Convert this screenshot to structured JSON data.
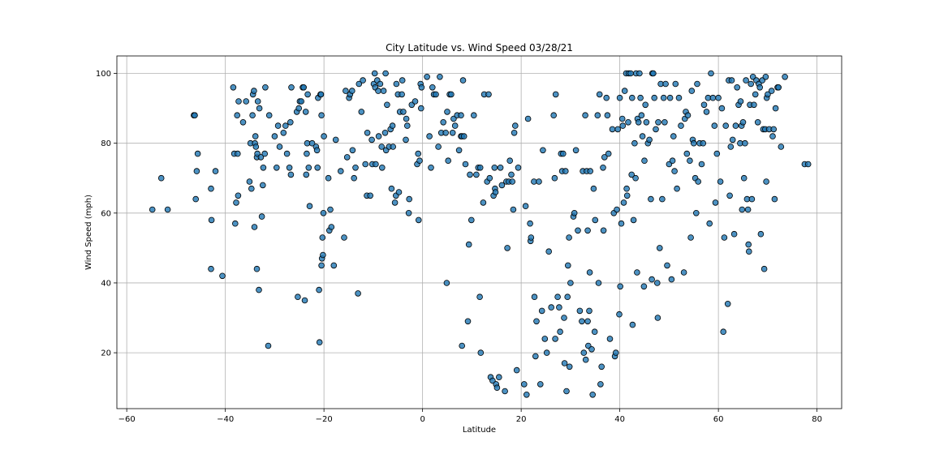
{
  "chart_data": {
    "type": "scatter",
    "title": "City Latitude vs. Wind Speed 03/28/21",
    "xlabel": "Latitude",
    "ylabel": "Wind Speed (mph)",
    "xlim": [
      -62,
      85
    ],
    "ylim": [
      4,
      105
    ],
    "xticks": [
      -60,
      -40,
      -20,
      0,
      20,
      40,
      60,
      80
    ],
    "yticks": [
      20,
      40,
      60,
      80,
      100
    ],
    "grid": true,
    "legend": "none",
    "colors": {
      "point_fill": "#1f77b4",
      "point_edge": "#000000"
    },
    "points": [
      [
        -54.8,
        61
      ],
      [
        -53,
        70
      ],
      [
        -51.7,
        61
      ],
      [
        -46.4,
        88
      ],
      [
        -46.2,
        88
      ],
      [
        -46,
        64
      ],
      [
        -45.8,
        72
      ],
      [
        -45.6,
        77
      ],
      [
        -42.8,
        58
      ],
      [
        -42.9,
        67
      ],
      [
        -42.9,
        44
      ],
      [
        -42,
        72
      ],
      [
        -40.6,
        42
      ],
      [
        -38.4,
        96
      ],
      [
        -38.2,
        77
      ],
      [
        -38,
        57
      ],
      [
        -37.8,
        63
      ],
      [
        -37.6,
        88
      ],
      [
        -37.4,
        65
      ],
      [
        -37.3,
        92
      ],
      [
        -37.5,
        77
      ],
      [
        -36.4,
        86
      ],
      [
        -35.8,
        92
      ],
      [
        -35.1,
        69
      ],
      [
        -34.9,
        80
      ],
      [
        -34.7,
        67
      ],
      [
        -34.5,
        88
      ],
      [
        -34.4,
        94
      ],
      [
        -34.2,
        95
      ],
      [
        -34.1,
        56
      ],
      [
        -34,
        80
      ],
      [
        -33.8,
        79
      ],
      [
        -33.6,
        44
      ],
      [
        -33.6,
        76
      ],
      [
        -33.9,
        82
      ],
      [
        -33.5,
        77
      ],
      [
        -33.4,
        92
      ],
      [
        -33.2,
        38
      ],
      [
        -33.1,
        90
      ],
      [
        -32.8,
        76
      ],
      [
        -32.6,
        59
      ],
      [
        -32.4,
        68
      ],
      [
        -32.3,
        73
      ],
      [
        -32,
        77
      ],
      [
        -31.9,
        96
      ],
      [
        -31.3,
        22
      ],
      [
        -31.1,
        88
      ],
      [
        -30,
        82
      ],
      [
        -29.6,
        73
      ],
      [
        -29.3,
        85
      ],
      [
        -29,
        79
      ],
      [
        -28.2,
        83
      ],
      [
        -27.8,
        85
      ],
      [
        -27.5,
        77
      ],
      [
        -27,
        73
      ],
      [
        -26.8,
        86
      ],
      [
        -26.7,
        71
      ],
      [
        -26.6,
        96
      ],
      [
        -25.5,
        89
      ],
      [
        -25.3,
        36
      ],
      [
        -25.1,
        90
      ],
      [
        -24.9,
        92
      ],
      [
        -24.6,
        92
      ],
      [
        -24.3,
        96
      ],
      [
        -24.1,
        96
      ],
      [
        -23.9,
        35
      ],
      [
        -23.7,
        89
      ],
      [
        -23.6,
        71
      ],
      [
        -23.5,
        77
      ],
      [
        -23.4,
        80
      ],
      [
        -23.3,
        94
      ],
      [
        -23.1,
        73
      ],
      [
        -22.9,
        62
      ],
      [
        -22.4,
        80
      ],
      [
        -21.6,
        79
      ],
      [
        -21.4,
        78
      ],
      [
        -21.3,
        73
      ],
      [
        -21.2,
        93
      ],
      [
        -21,
        38
      ],
      [
        -20.9,
        23
      ],
      [
        -20.7,
        94
      ],
      [
        -20.6,
        94
      ],
      [
        -20.5,
        88
      ],
      [
        -20.5,
        45
      ],
      [
        -20.4,
        47
      ],
      [
        -20.3,
        53
      ],
      [
        -20.2,
        48
      ],
      [
        -20.1,
        60
      ],
      [
        -20,
        82
      ],
      [
        -19.1,
        70
      ],
      [
        -18.9,
        55
      ],
      [
        -18.7,
        61
      ],
      [
        -18.5,
        56
      ],
      [
        -18,
        45
      ],
      [
        -17.6,
        81
      ],
      [
        -16.6,
        72
      ],
      [
        -15.9,
        53
      ],
      [
        -15.6,
        95
      ],
      [
        -15.3,
        76
      ],
      [
        -14.9,
        93
      ],
      [
        -14.7,
        94
      ],
      [
        -14.3,
        95
      ],
      [
        -14.2,
        78
      ],
      [
        -13.9,
        70
      ],
      [
        -13.6,
        73
      ],
      [
        -13.1,
        37
      ],
      [
        -12.9,
        97
      ],
      [
        -12.4,
        89
      ],
      [
        -12.1,
        98
      ],
      [
        -11.6,
        74
      ],
      [
        -11.3,
        65
      ],
      [
        -11.2,
        83
      ],
      [
        -10.6,
        65
      ],
      [
        -10.3,
        81
      ],
      [
        -10.2,
        74
      ],
      [
        -9.9,
        97
      ],
      [
        -9.7,
        100
      ],
      [
        -9.6,
        96
      ],
      [
        -9.5,
        74
      ],
      [
        -9.2,
        98
      ],
      [
        -9,
        95
      ],
      [
        -8.9,
        82
      ],
      [
        -8.6,
        97
      ],
      [
        -8.3,
        79
      ],
      [
        -8.2,
        73
      ],
      [
        -7.9,
        95
      ],
      [
        -7.6,
        83
      ],
      [
        -7.5,
        100
      ],
      [
        -7.4,
        78
      ],
      [
        -7.2,
        91
      ],
      [
        -6.8,
        79
      ],
      [
        -6.5,
        84
      ],
      [
        -6.3,
        67
      ],
      [
        -6.1,
        85
      ],
      [
        -6,
        79
      ],
      [
        -5.6,
        63
      ],
      [
        -5.4,
        65
      ],
      [
        -5.3,
        97
      ],
      [
        -5,
        94
      ],
      [
        -4.8,
        66
      ],
      [
        -4.6,
        89
      ],
      [
        -4.2,
        94
      ],
      [
        -4.1,
        98
      ],
      [
        -3.9,
        89
      ],
      [
        -3.4,
        81
      ],
      [
        -3.3,
        87
      ],
      [
        -3.1,
        85
      ],
      [
        -2.8,
        60
      ],
      [
        -2.7,
        64
      ],
      [
        -2.2,
        91
      ],
      [
        -1.5,
        92
      ],
      [
        -1.1,
        74
      ],
      [
        -0.9,
        77
      ],
      [
        -0.8,
        58
      ],
      [
        -0.6,
        75
      ],
      [
        -0.4,
        97
      ],
      [
        -0.3,
        90
      ],
      [
        -0.2,
        96
      ],
      [
        0.9,
        99
      ],
      [
        1.4,
        82
      ],
      [
        1.7,
        73
      ],
      [
        2,
        96
      ],
      [
        2.3,
        94
      ],
      [
        2.7,
        94
      ],
      [
        3.2,
        79
      ],
      [
        3.5,
        99
      ],
      [
        3.8,
        83
      ],
      [
        4.2,
        86
      ],
      [
        4.7,
        83
      ],
      [
        4.9,
        40
      ],
      [
        5,
        89
      ],
      [
        5.2,
        75
      ],
      [
        5.5,
        94
      ],
      [
        5.8,
        94
      ],
      [
        6.1,
        83
      ],
      [
        6.3,
        87
      ],
      [
        6.6,
        85
      ],
      [
        7,
        88
      ],
      [
        7.4,
        78
      ],
      [
        7.8,
        82
      ],
      [
        7.8,
        88
      ],
      [
        8,
        22
      ],
      [
        8,
        82
      ],
      [
        8.2,
        98
      ],
      [
        8.4,
        82
      ],
      [
        8.7,
        74
      ],
      [
        9.2,
        29
      ],
      [
        9.4,
        51
      ],
      [
        9.6,
        71
      ],
      [
        9.9,
        58
      ],
      [
        10.4,
        88
      ],
      [
        10.9,
        71
      ],
      [
        11.3,
        73
      ],
      [
        11.6,
        36
      ],
      [
        11.7,
        73
      ],
      [
        11.8,
        20
      ],
      [
        12.3,
        63
      ],
      [
        12.5,
        94
      ],
      [
        13.1,
        69
      ],
      [
        13.4,
        94
      ],
      [
        13.6,
        70
      ],
      [
        13.8,
        13
      ],
      [
        14.2,
        12
      ],
      [
        14.4,
        65
      ],
      [
        14.6,
        73
      ],
      [
        14.7,
        67
      ],
      [
        14.8,
        66
      ],
      [
        14.9,
        11
      ],
      [
        15.1,
        10
      ],
      [
        15.5,
        13
      ],
      [
        15.8,
        73
      ],
      [
        16.1,
        68
      ],
      [
        16.7,
        9
      ],
      [
        17,
        69
      ],
      [
        17.2,
        50
      ],
      [
        17.5,
        69
      ],
      [
        17.7,
        75
      ],
      [
        18,
        71
      ],
      [
        18.2,
        69
      ],
      [
        18.4,
        61
      ],
      [
        18.6,
        83
      ],
      [
        18.8,
        85
      ],
      [
        19.1,
        15
      ],
      [
        19.4,
        73
      ],
      [
        20.6,
        11
      ],
      [
        20.9,
        62
      ],
      [
        21.1,
        8
      ],
      [
        21.4,
        87
      ],
      [
        21.8,
        57
      ],
      [
        21.9,
        52
      ],
      [
        22,
        53
      ],
      [
        22.6,
        69
      ],
      [
        22.7,
        36
      ],
      [
        22.9,
        19
      ],
      [
        23.1,
        29
      ],
      [
        23.6,
        69
      ],
      [
        23.9,
        11
      ],
      [
        24.2,
        32
      ],
      [
        24.4,
        78
      ],
      [
        24.8,
        24
      ],
      [
        25.2,
        20
      ],
      [
        25.6,
        49
      ],
      [
        26.1,
        33
      ],
      [
        26.6,
        88
      ],
      [
        26.8,
        70
      ],
      [
        26.9,
        24
      ],
      [
        27,
        94
      ],
      [
        27.4,
        36
      ],
      [
        27.7,
        33
      ],
      [
        27.9,
        26
      ],
      [
        28.1,
        77
      ],
      [
        28.3,
        72
      ],
      [
        28.5,
        77
      ],
      [
        28.7,
        30
      ],
      [
        28.8,
        17
      ],
      [
        29,
        72
      ],
      [
        29.2,
        9
      ],
      [
        29.4,
        36
      ],
      [
        29.5,
        45
      ],
      [
        29.7,
        53
      ],
      [
        29.8,
        16
      ],
      [
        30,
        40
      ],
      [
        30.6,
        59
      ],
      [
        30.8,
        60
      ],
      [
        31.1,
        78
      ],
      [
        31.5,
        55
      ],
      [
        31.9,
        32
      ],
      [
        32.3,
        29
      ],
      [
        32.5,
        72
      ],
      [
        32.7,
        20
      ],
      [
        33,
        88
      ],
      [
        33.1,
        18
      ],
      [
        33.3,
        72
      ],
      [
        33.5,
        55
      ],
      [
        33.5,
        29
      ],
      [
        33.6,
        22
      ],
      [
        33.8,
        32
      ],
      [
        33.9,
        43
      ],
      [
        34,
        72
      ],
      [
        34.3,
        21
      ],
      [
        34.5,
        8
      ],
      [
        34.7,
        67
      ],
      [
        34.9,
        26
      ],
      [
        35,
        58
      ],
      [
        35.5,
        88
      ],
      [
        35.7,
        40
      ],
      [
        35.9,
        94
      ],
      [
        36.1,
        11
      ],
      [
        36.3,
        16
      ],
      [
        36.6,
        73
      ],
      [
        36.7,
        55
      ],
      [
        36.9,
        76
      ],
      [
        37.3,
        93
      ],
      [
        37.5,
        88
      ],
      [
        37.7,
        77
      ],
      [
        38,
        24
      ],
      [
        38.5,
        84
      ],
      [
        38.8,
        60
      ],
      [
        39,
        19
      ],
      [
        39.2,
        20
      ],
      [
        39.4,
        61
      ],
      [
        39.6,
        84
      ],
      [
        39.9,
        31
      ],
      [
        40,
        93
      ],
      [
        40.1,
        39
      ],
      [
        40.3,
        57
      ],
      [
        40.5,
        87
      ],
      [
        40.6,
        85
      ],
      [
        40.8,
        63
      ],
      [
        41,
        95
      ],
      [
        41.3,
        100
      ],
      [
        41.4,
        67
      ],
      [
        41.5,
        65
      ],
      [
        41.7,
        86
      ],
      [
        41.8,
        100
      ],
      [
        42.2,
        100
      ],
      [
        42.4,
        71
      ],
      [
        42.5,
        93
      ],
      [
        42.6,
        28
      ],
      [
        42.8,
        58
      ],
      [
        43,
        80
      ],
      [
        43.2,
        70
      ],
      [
        43.3,
        100
      ],
      [
        43.5,
        43
      ],
      [
        43.6,
        87
      ],
      [
        43.8,
        86
      ],
      [
        44,
        100
      ],
      [
        44.2,
        93
      ],
      [
        44.4,
        88
      ],
      [
        44.6,
        82
      ],
      [
        44.9,
        39
      ],
      [
        45,
        75
      ],
      [
        45.2,
        91
      ],
      [
        45.4,
        86
      ],
      [
        45.7,
        80
      ],
      [
        46,
        81
      ],
      [
        46.3,
        64
      ],
      [
        46.5,
        41
      ],
      [
        46.6,
        100
      ],
      [
        46.8,
        100
      ],
      [
        47,
        93
      ],
      [
        47.3,
        84
      ],
      [
        47.6,
        40
      ],
      [
        47.7,
        30
      ],
      [
        47.8,
        86
      ],
      [
        48.1,
        50
      ],
      [
        48.3,
        97
      ],
      [
        48.6,
        64
      ],
      [
        48.9,
        93
      ],
      [
        49.1,
        86
      ],
      [
        49.3,
        97
      ],
      [
        49.6,
        45
      ],
      [
        50,
        74
      ],
      [
        50.2,
        93
      ],
      [
        50.5,
        41
      ],
      [
        50.7,
        75
      ],
      [
        50.9,
        82
      ],
      [
        51.1,
        72
      ],
      [
        51.3,
        97
      ],
      [
        51.6,
        67
      ],
      [
        52,
        93
      ],
      [
        52.4,
        85
      ],
      [
        53,
        43
      ],
      [
        53.2,
        87
      ],
      [
        53.4,
        89
      ],
      [
        53.6,
        77
      ],
      [
        53.8,
        88
      ],
      [
        54.2,
        75
      ],
      [
        54.4,
        53
      ],
      [
        54.6,
        95
      ],
      [
        54.8,
        81
      ],
      [
        55,
        80
      ],
      [
        55.3,
        70
      ],
      [
        55.5,
        60
      ],
      [
        55.7,
        97
      ],
      [
        55.9,
        69
      ],
      [
        56.2,
        80
      ],
      [
        56.6,
        74
      ],
      [
        56.9,
        80
      ],
      [
        57.1,
        91
      ],
      [
        57.6,
        89
      ],
      [
        57.9,
        93
      ],
      [
        58.2,
        57
      ],
      [
        58.5,
        100
      ],
      [
        58.9,
        93
      ],
      [
        59.2,
        85
      ],
      [
        59.4,
        63
      ],
      [
        59.7,
        77
      ],
      [
        60,
        93
      ],
      [
        60.4,
        69
      ],
      [
        60.7,
        90
      ],
      [
        61,
        26
      ],
      [
        61.2,
        53
      ],
      [
        61.5,
        85
      ],
      [
        61.9,
        34
      ],
      [
        62.1,
        98
      ],
      [
        62.3,
        65
      ],
      [
        62.5,
        79
      ],
      [
        62.7,
        98
      ],
      [
        62.9,
        81
      ],
      [
        63.2,
        54
      ],
      [
        63.5,
        85
      ],
      [
        63.8,
        96
      ],
      [
        64.1,
        91
      ],
      [
        64.4,
        80
      ],
      [
        64.5,
        92
      ],
      [
        64.7,
        85
      ],
      [
        64.8,
        61
      ],
      [
        65,
        86
      ],
      [
        65.2,
        70
      ],
      [
        65.4,
        80
      ],
      [
        65.6,
        98
      ],
      [
        65.8,
        64
      ],
      [
        66,
        61
      ],
      [
        66.1,
        51
      ],
      [
        66.2,
        49
      ],
      [
        66.4,
        91
      ],
      [
        66.6,
        97
      ],
      [
        66.8,
        64
      ],
      [
        67,
        99
      ],
      [
        67.2,
        91
      ],
      [
        67.5,
        94
      ],
      [
        67.7,
        98
      ],
      [
        68,
        86
      ],
      [
        68.2,
        97
      ],
      [
        68.4,
        96
      ],
      [
        68.6,
        54
      ],
      [
        68.9,
        98
      ],
      [
        69.1,
        84
      ],
      [
        69.3,
        44
      ],
      [
        69.5,
        84
      ],
      [
        69.6,
        99
      ],
      [
        69.7,
        69
      ],
      [
        69.8,
        93
      ],
      [
        70,
        94
      ],
      [
        70.3,
        84
      ],
      [
        70.8,
        95
      ],
      [
        71,
        82
      ],
      [
        71.2,
        84
      ],
      [
        71.4,
        64
      ],
      [
        71.6,
        90
      ],
      [
        72,
        96
      ],
      [
        72.2,
        96
      ],
      [
        72.7,
        79
      ],
      [
        73.5,
        99
      ],
      [
        77.5,
        74
      ],
      [
        78.2,
        74
      ]
    ]
  }
}
